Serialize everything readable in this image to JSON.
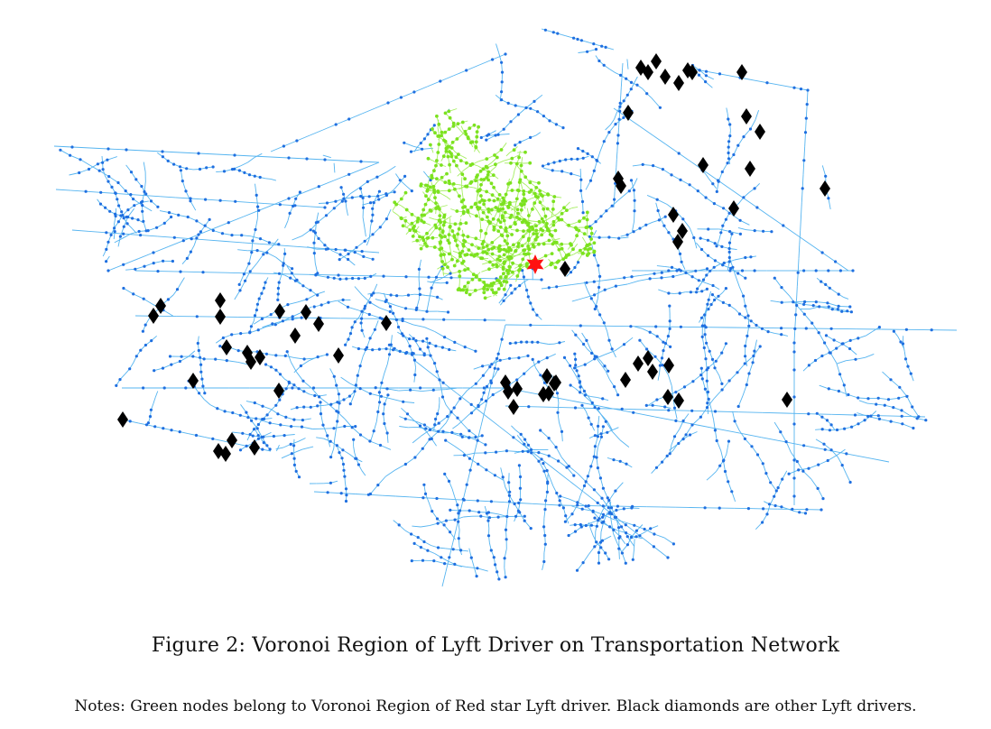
{
  "figure": {
    "caption": "Figure 2: Voronoi Region of Lyft Driver on Transportation Network",
    "notes": "Notes: Green nodes belong to Voronoi Region of Red star Lyft driver. Black diamonds are other Lyft drivers."
  },
  "colors": {
    "edge": "#55b4f0",
    "node": "#1f6fe0",
    "region_node": "#7ce21f",
    "region_edge": "#a6ee62",
    "driver": "#000000",
    "selected_driver": "#ff1111"
  },
  "markers": {
    "selected_driver_shape": "six-point-star",
    "other_driver_shape": "diamond"
  }
}
